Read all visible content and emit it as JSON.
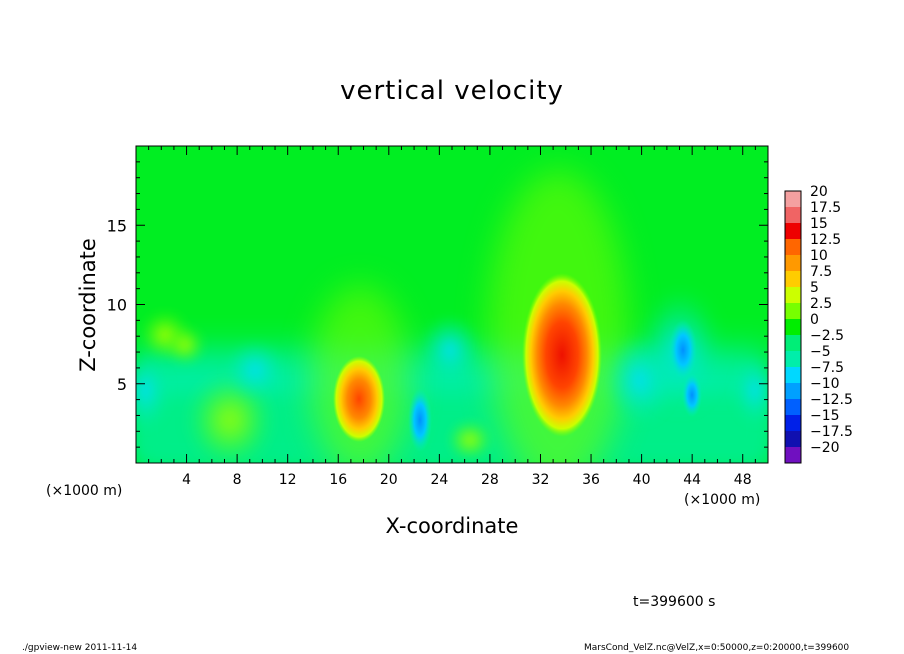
{
  "chart_data": {
    "type": "heatmap",
    "title": "vertical velocity",
    "xlabel": "X-coordinate",
    "ylabel": "Z-coordinate",
    "x_unit_label": "(×1000 m)",
    "xlim": [
      0,
      50
    ],
    "ylim": [
      0,
      20
    ],
    "x_ticks": [
      "4",
      "8",
      "12",
      "16",
      "20",
      "24",
      "28",
      "32",
      "36",
      "40",
      "44",
      "48"
    ],
    "y_ticks": [
      "5",
      "10",
      "15"
    ],
    "y_tick_values": [
      5,
      10,
      15
    ],
    "x_tick_values": [
      4,
      8,
      12,
      16,
      20,
      24,
      28,
      32,
      36,
      40,
      44,
      48
    ],
    "colorbar": {
      "levels": [
        "20",
        "17.5",
        "15",
        "12.5",
        "10",
        "7.5",
        "5",
        "2.5",
        "0",
        "−2.5",
        "−5",
        "−7.5",
        "−10",
        "−12.5",
        "−15",
        "−17.5",
        "−20"
      ],
      "colors": [
        "#f4a0a0",
        "#f06464",
        "#ee0000",
        "#ff6600",
        "#ff9900",
        "#ffcc00",
        "#ccff00",
        "#77ff00",
        "#00ee00",
        "#00ee77",
        "#00eeaa",
        "#00d8ff",
        "#00a0ff",
        "#0060ff",
        "#0020e8",
        "#1010b0",
        "#7010c0"
      ]
    },
    "features": [
      {
        "x": 33.5,
        "z": 7,
        "value": 15
      },
      {
        "x": 17.8,
        "z": 4.5,
        "value": 12
      },
      {
        "x": 22.5,
        "z": 2.5,
        "value": -8
      },
      {
        "x": 43,
        "z": 6.5,
        "value": -7
      },
      {
        "x": 43.8,
        "z": 4,
        "value": -6
      }
    ]
  },
  "time_label": "t=399600 s",
  "footer_left": "./gpview-new  2011-11-14",
  "footer_right": "MarsCond_VelZ.nc@VelZ,x=0:50000,z=0:20000,t=399600"
}
